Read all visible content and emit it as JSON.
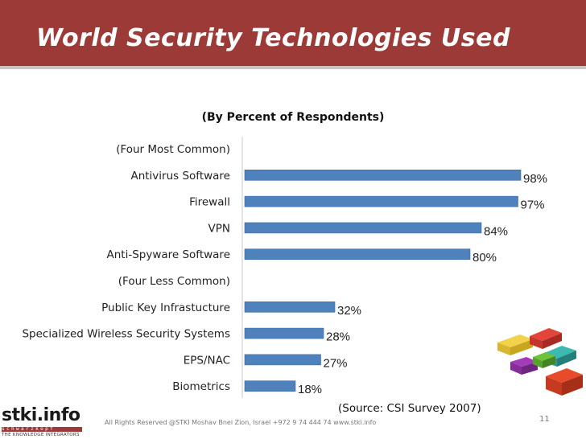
{
  "slide": {
    "title": "World Security Technologies Used",
    "page_number": "11",
    "footer": "All Rights Reserved @STKI    Moshav Bnei Zion, Israel  +972 9 74 444 74    www.stki.info",
    "logo_name": "stki.info",
    "logo_bar_text": "schwarzkopf",
    "logo_tagline": "THE KNOWLEDGE INTEGRATORS"
  },
  "colors": {
    "header": "#9b3a37",
    "bar": "#4f81bd",
    "bar_edge": "#3a6aa3"
  },
  "chart_data": {
    "type": "bar",
    "orientation": "horizontal",
    "subtitle": "(By Percent of Respondents)",
    "source": "(Source: CSI Survey 2007)",
    "xlim": [
      0,
      100
    ],
    "grid": false,
    "rows": [
      {
        "label": "(Four Most Common)",
        "value": null,
        "value_label": ""
      },
      {
        "label": "Antivirus Software",
        "value": 98,
        "value_label": "98%"
      },
      {
        "label": "Firewall",
        "value": 97,
        "value_label": "97%"
      },
      {
        "label": "VPN",
        "value": 84,
        "value_label": "84%"
      },
      {
        "label": "Anti-Spyware Software",
        "value": 80,
        "value_label": "80%"
      },
      {
        "label": "(Four Less Common)",
        "value": null,
        "value_label": ""
      },
      {
        "label": "Public Key Infrastucture",
        "value": 32,
        "value_label": "32%"
      },
      {
        "label": "Specialized Wireless Security Systems",
        "value": 28,
        "value_label": "28%"
      },
      {
        "label": "EPS/NAC",
        "value": 27,
        "value_label": "27%"
      },
      {
        "label": "Biometrics",
        "value": 18,
        "value_label": "18%"
      }
    ]
  }
}
